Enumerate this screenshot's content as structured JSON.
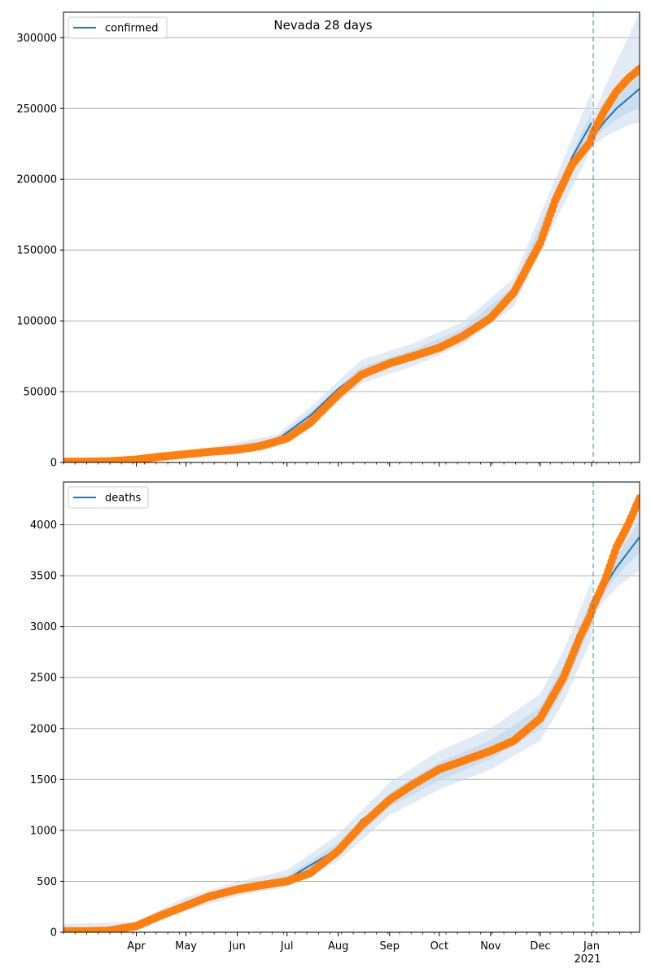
{
  "figure": {
    "title": "Nevada 28 days"
  },
  "colors": {
    "model": "#1f77b4",
    "observed": "#ff7f0e",
    "band": "#c6dbef",
    "grid": "#b0b0b0",
    "vline": "#1f77b4"
  },
  "chart_data": [
    {
      "type": "line",
      "title": "Nevada 28 days",
      "legend": {
        "label": "confirmed",
        "placement": "top-left"
      },
      "grid": "y",
      "x_range": [
        "2020-02-17",
        "2021-01-30"
      ],
      "forecast_start": "2021-01-02",
      "x_tick_labels": [
        "Apr",
        "May",
        "Jun",
        "Jul",
        "Aug",
        "Sep",
        "Oct",
        "Nov",
        "Dec",
        "Jan"
      ],
      "x_tick_dates": [
        "2020-04-01",
        "2020-05-01",
        "2020-06-01",
        "2020-07-01",
        "2020-08-01",
        "2020-09-01",
        "2020-10-01",
        "2020-11-01",
        "2020-12-01",
        "2021-01-01"
      ],
      "ylim": [
        0,
        318000
      ],
      "y_ticks": [
        0,
        50000,
        100000,
        150000,
        200000,
        250000,
        300000
      ],
      "y_tick_labels": [
        "0",
        "50000",
        "100000",
        "150000",
        "200000",
        "250000",
        "300000"
      ],
      "model_fit": {
        "x": [
          "2020-02-17",
          "2020-03-15",
          "2020-04-01",
          "2020-05-01",
          "2020-06-01",
          "2020-06-25",
          "2020-07-15",
          "2020-08-01",
          "2020-08-15",
          "2020-09-01",
          "2020-09-15",
          "2020-10-01",
          "2020-10-15",
          "2020-11-01",
          "2020-11-15",
          "2020-12-01",
          "2020-12-10",
          "2020-12-20",
          "2021-01-01"
        ],
        "y": [
          500,
          700,
          2500,
          6000,
          9500,
          16000,
          33000,
          52000,
          64000,
          72000,
          76000,
          83000,
          91000,
          103000,
          120000,
          155000,
          185000,
          215000,
          240000
        ]
      },
      "forecast": {
        "x": [
          "2021-01-02",
          "2021-01-09",
          "2021-01-16",
          "2021-01-23",
          "2021-01-30"
        ],
        "y": [
          230000,
          241000,
          250000,
          257000,
          264000
        ],
        "band_inner": {
          "low": [
            228000,
            236000,
            242000,
            247000,
            250000
          ],
          "high": [
            233000,
            247000,
            258000,
            268000,
            278000
          ]
        },
        "band_outer": {
          "low": [
            224000,
            230000,
            234000,
            238000,
            240000
          ],
          "high": [
            245000,
            265000,
            283000,
            300000,
            318000
          ]
        }
      },
      "bands": {
        "x": [
          "2020-02-17",
          "2020-05-01",
          "2020-06-25",
          "2020-07-15",
          "2020-08-15",
          "2020-09-15",
          "2020-10-15",
          "2020-11-15",
          "2020-12-10",
          "2021-01-01"
        ],
        "inner_low": [
          400,
          5500,
          14500,
          30500,
          60500,
          72500,
          87500,
          115500,
          178000,
          232000
        ],
        "inner_high": [
          600,
          6500,
          17500,
          35500,
          67500,
          79500,
          94500,
          124500,
          192000,
          248000
        ],
        "outer_low": [
          300,
          4800,
          13000,
          27500,
          56000,
          68000,
          83000,
          110000,
          170000,
          222000
        ],
        "outer_high": [
          700,
          7200,
          19500,
          39000,
          72500,
          84000,
          99000,
          130000,
          200000,
          262000
        ]
      },
      "observed": {
        "x": [
          "2020-02-17",
          "2020-03-01",
          "2020-03-15",
          "2020-04-01",
          "2020-04-15",
          "2020-05-01",
          "2020-05-15",
          "2020-06-01",
          "2020-06-15",
          "2020-07-01",
          "2020-07-15",
          "2020-08-01",
          "2020-08-15",
          "2020-09-01",
          "2020-09-15",
          "2020-10-01",
          "2020-10-15",
          "2020-11-01",
          "2020-11-15",
          "2020-12-01",
          "2020-12-10",
          "2020-12-20",
          "2020-12-31",
          "2021-01-02",
          "2021-01-09",
          "2021-01-16",
          "2021-01-23",
          "2021-01-30"
        ],
        "y": [
          500,
          500,
          800,
          2000,
          4000,
          5800,
          7500,
          9000,
          11500,
          17000,
          28000,
          48000,
          62000,
          70000,
          75000,
          81000,
          89000,
          102000,
          120000,
          155000,
          185000,
          210000,
          226000,
          233000,
          249000,
          262000,
          271000,
          278000
        ]
      }
    },
    {
      "type": "line",
      "title": "",
      "legend": {
        "label": "deaths",
        "placement": "top-left"
      },
      "grid": "y",
      "x_range": [
        "2020-02-17",
        "2021-01-30"
      ],
      "forecast_start": "2021-01-02",
      "x_tick_labels": [
        "Apr",
        "May",
        "Jun",
        "Jul",
        "Aug",
        "Sep",
        "Oct",
        "Nov",
        "Dec",
        "Jan"
      ],
      "x_tick_dates": [
        "2020-04-01",
        "2020-05-01",
        "2020-06-01",
        "2020-07-01",
        "2020-08-01",
        "2020-09-01",
        "2020-10-01",
        "2020-11-01",
        "2020-12-01",
        "2021-01-01"
      ],
      "x_year_label": "2021",
      "ylim": [
        0,
        4420
      ],
      "y_ticks": [
        0,
        500,
        1000,
        1500,
        2000,
        2500,
        3000,
        3500,
        4000
      ],
      "y_tick_labels": [
        "0",
        "500",
        "1000",
        "1500",
        "2000",
        "2500",
        "3000",
        "3500",
        "4000"
      ],
      "model_fit": {
        "x": [
          "2020-02-17",
          "2020-03-15",
          "2020-04-01",
          "2020-05-01",
          "2020-06-01",
          "2020-07-01",
          "2020-08-01",
          "2020-08-15",
          "2020-09-01",
          "2020-09-15",
          "2020-10-01",
          "2020-10-15",
          "2020-11-01",
          "2020-11-15",
          "2020-12-01",
          "2020-12-15",
          "2021-01-01"
        ],
        "y": [
          10,
          15,
          50,
          280,
          420,
          520,
          820,
          1100,
          1300,
          1450,
          1580,
          1680,
          1790,
          1900,
          2100,
          2500,
          3150
        ]
      },
      "forecast": {
        "x": [
          "2021-01-02",
          "2021-01-09",
          "2021-01-16",
          "2021-01-23",
          "2021-01-30"
        ],
        "y": [
          3170,
          3400,
          3580,
          3730,
          3880
        ],
        "band_inner": {
          "low": [
            3140,
            3340,
            3490,
            3610,
            3720
          ],
          "high": [
            3200,
            3470,
            3680,
            3860,
            4040
          ]
        },
        "band_outer": {
          "low": [
            3100,
            3260,
            3380,
            3470,
            3550
          ],
          "high": [
            3260,
            3560,
            3800,
            4020,
            4220
          ]
        }
      },
      "bands": {
        "x": [
          "2020-02-17",
          "2020-04-01",
          "2020-05-01",
          "2020-06-01",
          "2020-07-01",
          "2020-08-01",
          "2020-09-01",
          "2020-10-01",
          "2020-11-01",
          "2020-12-01",
          "2020-12-15",
          "2021-01-01"
        ],
        "inner_low": [
          5,
          30,
          250,
          390,
          485,
          760,
          1230,
          1490,
          1700,
          1990,
          2380,
          3020
        ],
        "inner_high": [
          15,
          70,
          310,
          450,
          555,
          880,
          1370,
          1670,
          1880,
          2210,
          2620,
          3280
        ],
        "outer_low": [
          0,
          15,
          215,
          355,
          445,
          700,
          1150,
          1400,
          1600,
          1880,
          2260,
          2880
        ],
        "outer_high": [
          80,
          105,
          345,
          495,
          610,
          960,
          1470,
          1780,
          2000,
          2340,
          2760,
          3450
        ]
      },
      "observed": {
        "x": [
          "2020-02-17",
          "2020-03-01",
          "2020-03-15",
          "2020-04-01",
          "2020-04-15",
          "2020-05-01",
          "2020-05-15",
          "2020-06-01",
          "2020-06-15",
          "2020-07-01",
          "2020-07-15",
          "2020-08-01",
          "2020-08-15",
          "2020-09-01",
          "2020-09-15",
          "2020-10-01",
          "2020-10-15",
          "2020-11-01",
          "2020-11-15",
          "2020-12-01",
          "2020-12-15",
          "2020-12-25",
          "2020-12-31",
          "2021-01-02",
          "2021-01-09",
          "2021-01-16",
          "2021-01-23",
          "2021-01-30"
        ],
        "y": [
          10,
          10,
          15,
          60,
          160,
          260,
          350,
          420,
          460,
          500,
          580,
          800,
          1050,
          1300,
          1450,
          1600,
          1680,
          1780,
          1880,
          2100,
          2500,
          2900,
          3100,
          3200,
          3450,
          3780,
          4000,
          4260
        ]
      }
    }
  ]
}
